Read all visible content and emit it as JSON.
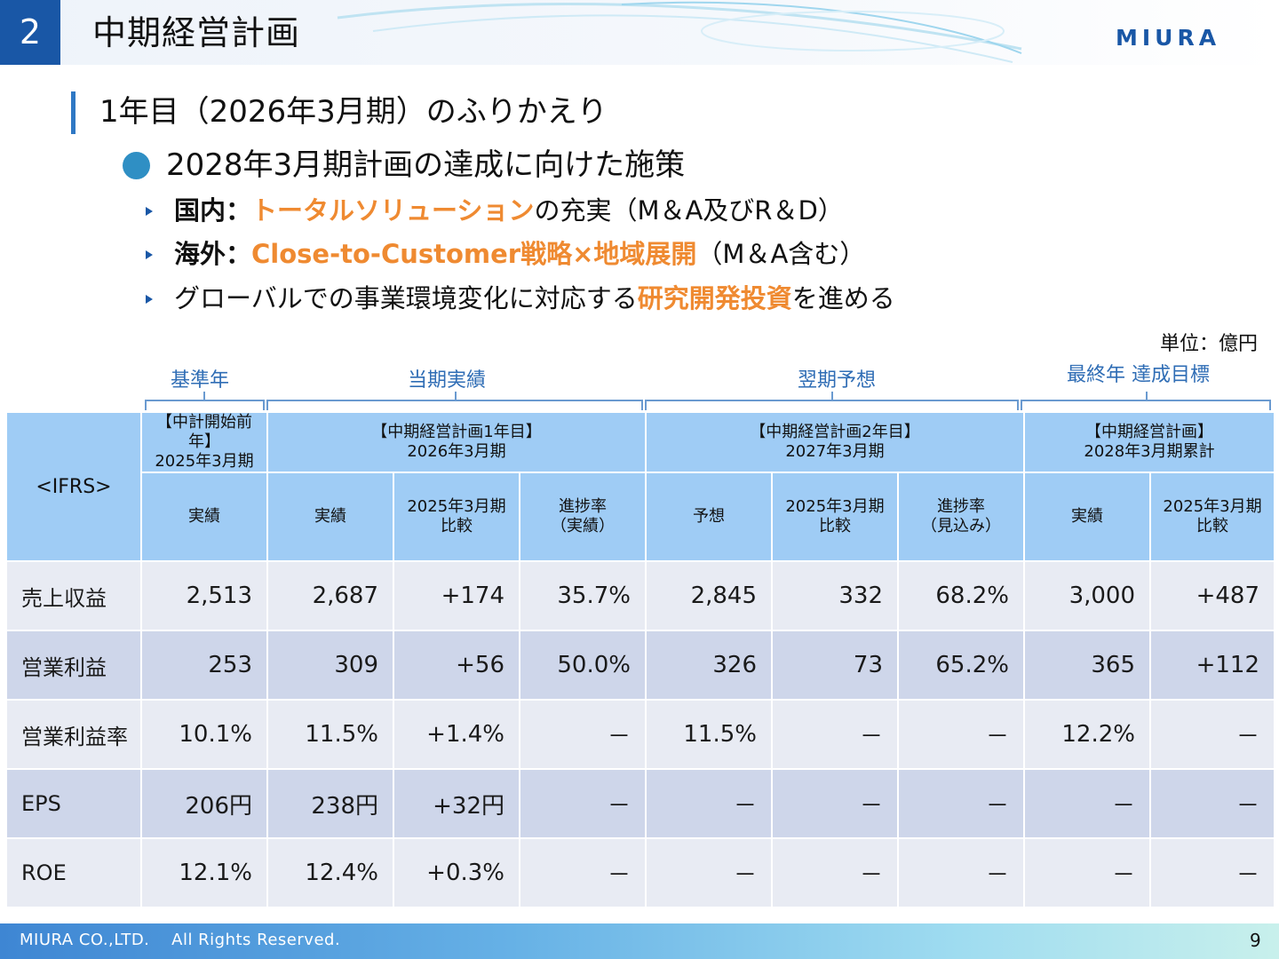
{
  "header": {
    "section_number": "2",
    "title": "中期経営計画",
    "logo_text": "MIURA",
    "accent_color": "#1957a6"
  },
  "subheading": "1年目（2026年3月期）のふりかえり",
  "bullet": "2028年3月期計画の達成に向けた施策",
  "items": [
    {
      "label": "国内：",
      "highlight": "トータルソリューション",
      "rest": "の充実（M＆A及びR＆D）"
    },
    {
      "label": "海外：",
      "highlight": "Close-to-Customer戦略×地域展開",
      "rest": "（M＆A含む）"
    },
    {
      "pre": "グローバルでの事業環境変化に対応する",
      "highlight": "研究開発投資",
      "rest": "を進める"
    }
  ],
  "unit": "単位：億円",
  "group_labels": {
    "base": "基準年",
    "actual": "当期実績",
    "forecast": "翌期予想",
    "target": "最終年 達成目標"
  },
  "table": {
    "corner": "<IFRS>",
    "groups": [
      {
        "line1": "【中計開始前年】",
        "line2": "2025年3月期"
      },
      {
        "line1": "【中期経営計画1年目】",
        "line2": "2026年3月期"
      },
      {
        "line1": "【中期経営計画2年目】",
        "line2": "2027年3月期"
      },
      {
        "line1": "【中期経営計画】",
        "line2": "2028年3月期累計"
      }
    ],
    "subheaders": [
      {
        "line1": "実績",
        "line2": ""
      },
      {
        "line1": "実績",
        "line2": ""
      },
      {
        "line1": "2025年3月期",
        "line2": "比較"
      },
      {
        "line1": "進捗率",
        "line2": "（実績）"
      },
      {
        "line1": "予想",
        "line2": ""
      },
      {
        "line1": "2025年3月期",
        "line2": "比較"
      },
      {
        "line1": "進捗率",
        "line2": "（見込み）"
      },
      {
        "line1": "実績",
        "line2": ""
      },
      {
        "line1": "2025年3月期",
        "line2": "比較"
      }
    ],
    "rows": [
      {
        "label": "売上収益",
        "cells": [
          "2,513",
          "2,687",
          "+174",
          "35.7%",
          "2,845",
          "332",
          "68.2%",
          "3,000",
          "+487"
        ]
      },
      {
        "label": "営業利益",
        "cells": [
          "253",
          "309",
          "+56",
          "50.0%",
          "326",
          "73",
          "65.2%",
          "365",
          "+112"
        ]
      },
      {
        "label": "営業利益率",
        "cells": [
          "10.1%",
          "11.5%",
          "+1.4%",
          "－",
          "11.5%",
          "－",
          "－",
          "12.2%",
          "－"
        ]
      },
      {
        "label": "EPS",
        "cells": [
          "206円",
          "238円",
          "+32円",
          "－",
          "－",
          "－",
          "－",
          "－",
          "－"
        ]
      },
      {
        "label": "ROE",
        "cells": [
          "12.1%",
          "12.4%",
          "+0.3%",
          "－",
          "－",
          "－",
          "－",
          "－",
          "－"
        ]
      }
    ]
  },
  "footer": {
    "copyright": "MIURA CO.,LTD.　 All Rights Reserved.",
    "page_number": "9"
  }
}
